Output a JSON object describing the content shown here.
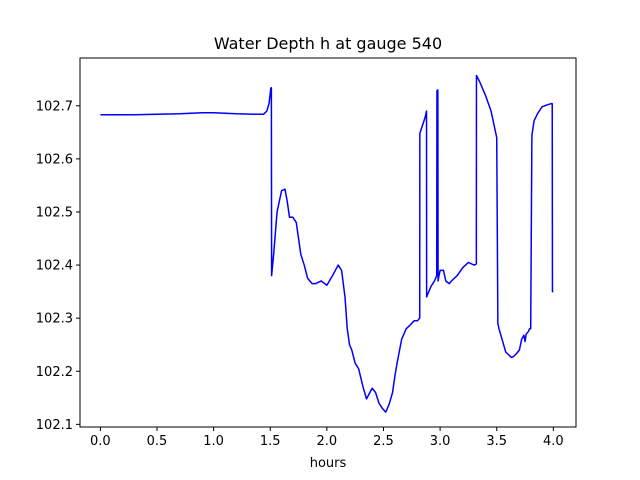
{
  "chart_data": {
    "type": "line",
    "title": "Water Depth h at gauge 540",
    "xlabel": "hours",
    "ylabel": "",
    "xlim": [
      -0.18,
      4.2
    ],
    "ylim": [
      102.095,
      102.79
    ],
    "xticks": [
      0.0,
      0.5,
      1.0,
      1.5,
      2.0,
      2.5,
      3.0,
      3.5,
      4.0
    ],
    "xtick_labels": [
      "0.0",
      "0.5",
      "1.0",
      "1.5",
      "2.0",
      "2.5",
      "3.0",
      "3.5",
      "4.0"
    ],
    "yticks": [
      102.1,
      102.2,
      102.3,
      102.4,
      102.5,
      102.6,
      102.7
    ],
    "ytick_labels": [
      "102.1",
      "102.2",
      "102.3",
      "102.4",
      "102.5",
      "102.6",
      "102.7"
    ],
    "grid": false,
    "series": [
      {
        "color": "#0000ff",
        "x": [
          0.0,
          0.1,
          0.3,
          0.5,
          0.7,
          0.9,
          1.0,
          1.2,
          1.4,
          1.44,
          1.47,
          1.49,
          1.505,
          1.51,
          1.512,
          1.53,
          1.56,
          1.6,
          1.63,
          1.65,
          1.67,
          1.7,
          1.73,
          1.77,
          1.8,
          1.83,
          1.87,
          1.9,
          1.95,
          2.0,
          2.05,
          2.1,
          2.13,
          2.16,
          2.18,
          2.2,
          2.22,
          2.25,
          2.28,
          2.32,
          2.35,
          2.4,
          2.43,
          2.46,
          2.49,
          2.52,
          2.55,
          2.58,
          2.6,
          2.62,
          2.66,
          2.7,
          2.74,
          2.77,
          2.8,
          2.82,
          2.821,
          2.84,
          2.87,
          2.88,
          2.881,
          2.9,
          2.92,
          2.95,
          2.97,
          2.972,
          2.98,
          2.982,
          2.99,
          3.0,
          3.03,
          3.05,
          3.08,
          3.1,
          3.15,
          3.2,
          3.25,
          3.28,
          3.3,
          3.32,
          3.321,
          3.35,
          3.4,
          3.45,
          3.5,
          3.51,
          3.52,
          3.55,
          3.58,
          3.6,
          3.63,
          3.65,
          3.67,
          3.7,
          3.72,
          3.74,
          3.75,
          3.76,
          3.78,
          3.79,
          3.8,
          3.81,
          3.811,
          3.83,
          3.86,
          3.9,
          3.95,
          3.98,
          3.99,
          3.992,
          4.0
        ],
        "y": [
          102.683,
          102.683,
          102.683,
          102.684,
          102.685,
          102.687,
          102.687,
          102.685,
          102.684,
          102.684,
          102.69,
          102.705,
          102.733,
          102.734,
          102.38,
          102.42,
          102.5,
          102.54,
          102.543,
          102.52,
          102.49,
          102.49,
          102.48,
          102.42,
          102.4,
          102.375,
          102.365,
          102.365,
          102.37,
          102.362,
          102.38,
          102.4,
          102.39,
          102.34,
          102.28,
          102.25,
          102.24,
          102.215,
          102.205,
          102.17,
          102.148,
          102.168,
          102.16,
          102.14,
          102.13,
          102.123,
          102.138,
          102.16,
          102.19,
          102.215,
          102.26,
          102.28,
          102.288,
          102.295,
          102.295,
          102.3,
          102.648,
          102.66,
          102.68,
          102.69,
          102.34,
          102.35,
          102.36,
          102.37,
          102.38,
          102.728,
          102.73,
          102.37,
          102.38,
          102.39,
          102.39,
          102.37,
          102.365,
          102.37,
          102.38,
          102.395,
          102.405,
          102.402,
          102.4,
          102.402,
          102.757,
          102.745,
          102.72,
          102.69,
          102.64,
          102.29,
          102.28,
          102.258,
          102.236,
          102.232,
          102.226,
          102.228,
          102.232,
          102.24,
          102.26,
          102.268,
          102.256,
          102.27,
          102.275,
          102.28,
          102.28,
          102.632,
          102.645,
          102.672,
          102.685,
          102.698,
          102.702,
          102.704,
          102.704,
          102.35,
          102.35
        ]
      }
    ]
  }
}
